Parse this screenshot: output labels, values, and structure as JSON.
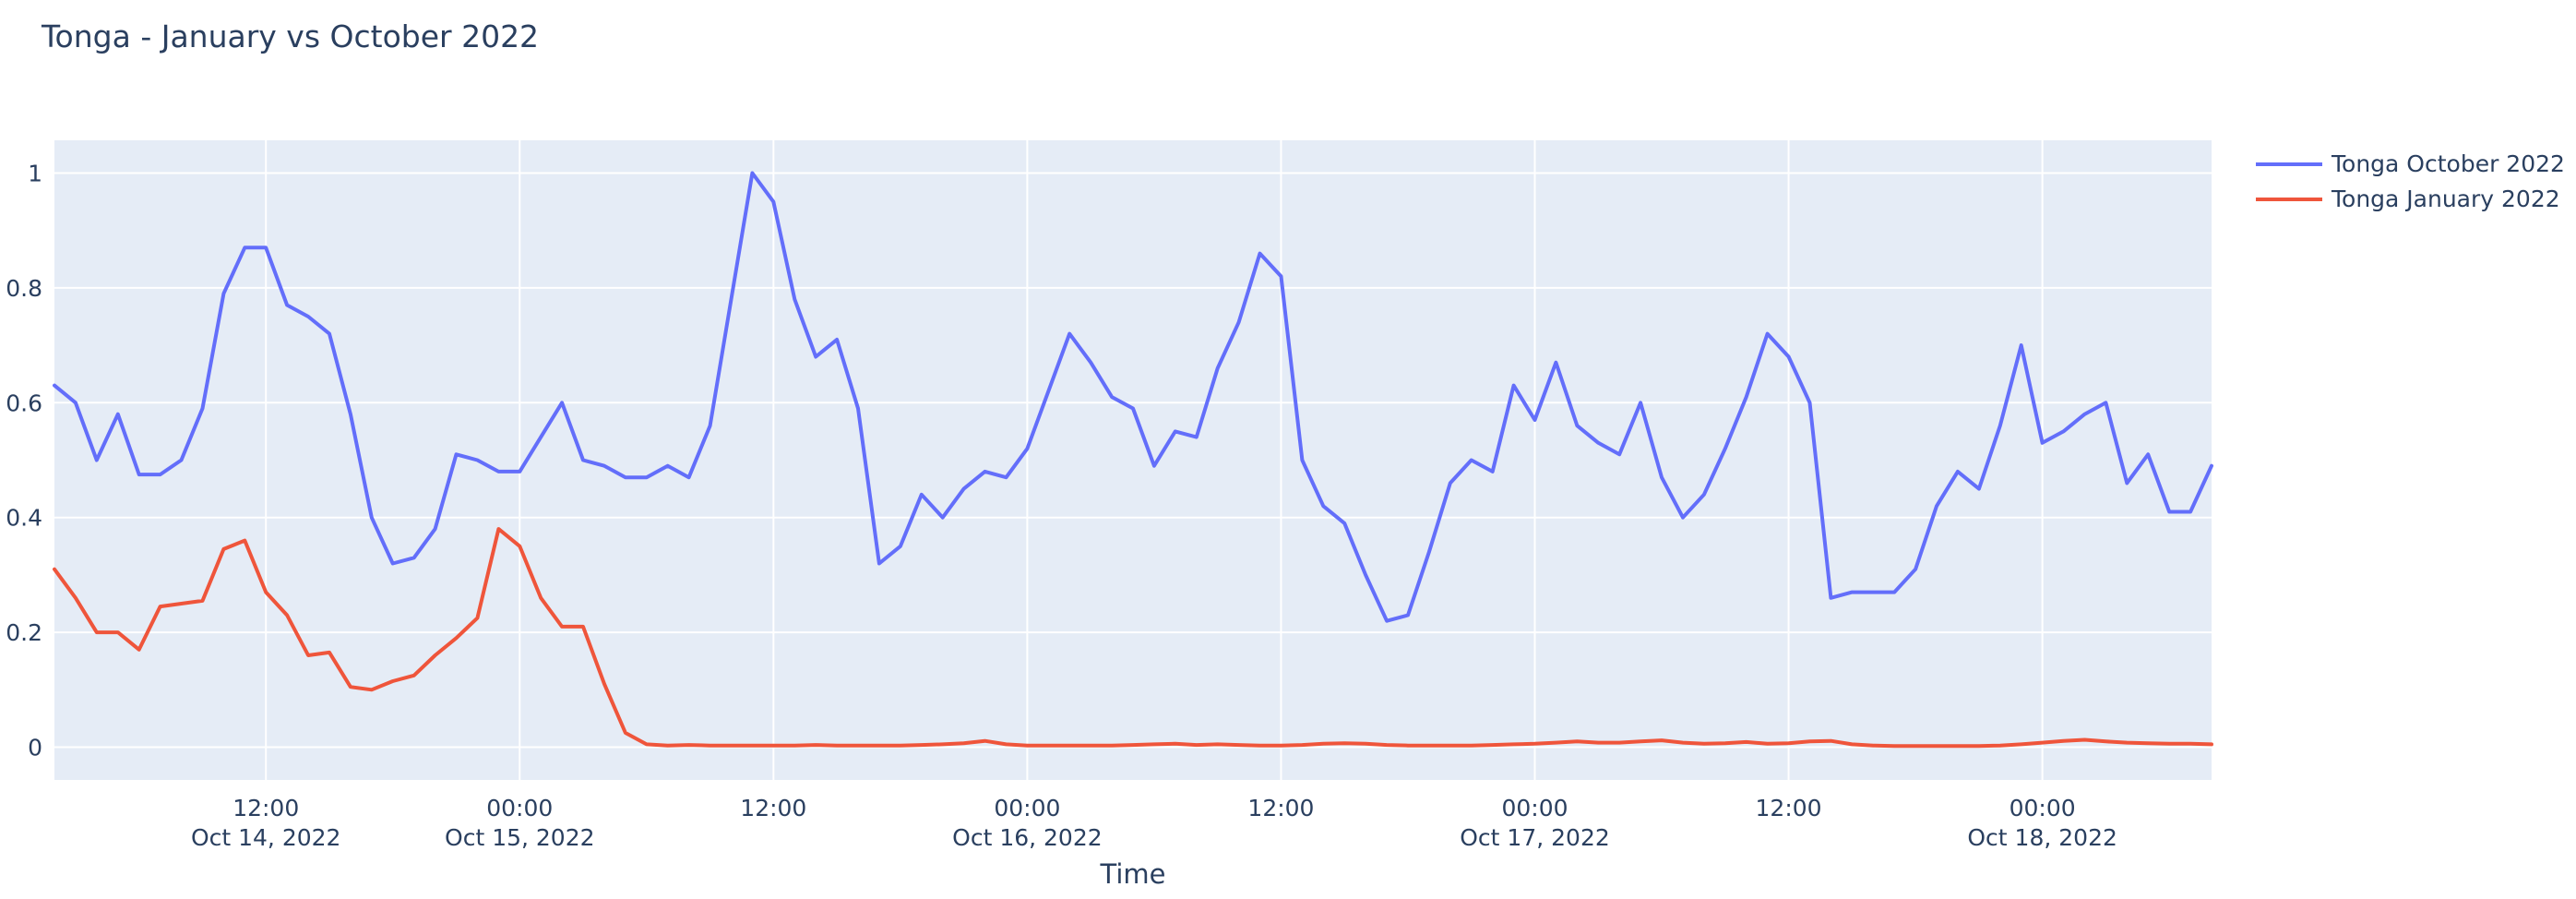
{
  "chart_data": {
    "type": "line",
    "title": "Tonga - January vs October 2022",
    "xlabel": "Time",
    "ylabel": "",
    "x_start": "Oct 14, 2022 02:00",
    "x_step_hours": 1,
    "xlim_hours": [
      0,
      102
    ],
    "ylim": [
      -0.057,
      1.057
    ],
    "grid": true,
    "legend_position": "top-right",
    "plot_bg": "#E5ECF6",
    "grid_color": "#FFFFFF",
    "text_color": "#2A3F5F",
    "line_width": 4,
    "y_ticks": [
      0,
      0.2,
      0.4,
      0.6,
      0.8,
      1
    ],
    "y_tick_labels": [
      "0",
      "0.2",
      "0.4",
      "0.6",
      "0.8",
      "1"
    ],
    "x_ticks": [
      {
        "offset_hours": 10,
        "time": "12:00",
        "date": "Oct 14, 2022"
      },
      {
        "offset_hours": 22,
        "time": "00:00",
        "date": "Oct 15, 2022"
      },
      {
        "offset_hours": 34,
        "time": "12:00",
        "date": ""
      },
      {
        "offset_hours": 46,
        "time": "00:00",
        "date": "Oct 16, 2022"
      },
      {
        "offset_hours": 58,
        "time": "12:00",
        "date": ""
      },
      {
        "offset_hours": 70,
        "time": "00:00",
        "date": "Oct 17, 2022"
      },
      {
        "offset_hours": 82,
        "time": "12:00",
        "date": ""
      },
      {
        "offset_hours": 94,
        "time": "00:00",
        "date": "Oct 18, 2022"
      }
    ],
    "series": [
      {
        "name": "Tonga October 2022",
        "color": "#636EFA",
        "values": [
          0.63,
          0.6,
          0.5,
          0.58,
          0.475,
          0.475,
          0.5,
          0.59,
          0.79,
          0.87,
          0.87,
          0.77,
          0.75,
          0.72,
          0.58,
          0.4,
          0.32,
          0.33,
          0.38,
          0.51,
          0.5,
          0.48,
          0.48,
          0.54,
          0.6,
          0.5,
          0.49,
          0.47,
          0.47,
          0.49,
          0.47,
          0.56,
          0.78,
          1.0,
          0.95,
          0.78,
          0.68,
          0.71,
          0.59,
          0.32,
          0.35,
          0.44,
          0.4,
          0.45,
          0.48,
          0.47,
          0.52,
          0.62,
          0.72,
          0.67,
          0.61,
          0.59,
          0.49,
          0.55,
          0.54,
          0.66,
          0.74,
          0.86,
          0.82,
          0.5,
          0.42,
          0.39,
          0.3,
          0.22,
          0.23,
          0.34,
          0.46,
          0.5,
          0.48,
          0.63,
          0.57,
          0.67,
          0.56,
          0.53,
          0.51,
          0.6,
          0.47,
          0.4,
          0.44,
          0.52,
          0.61,
          0.72,
          0.68,
          0.6,
          0.26,
          0.27,
          0.27,
          0.27,
          0.31,
          0.42,
          0.48,
          0.45,
          0.56,
          0.7,
          0.53,
          0.55,
          0.58,
          0.6,
          0.46,
          0.51,
          0.41,
          0.41,
          0.49
        ]
      },
      {
        "name": "Tonga January 2022",
        "color": "#EF553B",
        "values": [
          0.31,
          0.26,
          0.2,
          0.2,
          0.17,
          0.245,
          0.25,
          0.255,
          0.345,
          0.36,
          0.27,
          0.23,
          0.16,
          0.165,
          0.105,
          0.1,
          0.115,
          0.125,
          0.16,
          0.19,
          0.225,
          0.38,
          0.35,
          0.26,
          0.21,
          0.21,
          0.11,
          0.025,
          0.005,
          0.003,
          0.004,
          0.003,
          0.003,
          0.003,
          0.003,
          0.003,
          0.004,
          0.003,
          0.003,
          0.003,
          0.003,
          0.004,
          0.005,
          0.007,
          0.011,
          0.005,
          0.003,
          0.003,
          0.003,
          0.003,
          0.003,
          0.004,
          0.005,
          0.006,
          0.004,
          0.005,
          0.004,
          0.003,
          0.003,
          0.004,
          0.006,
          0.007,
          0.006,
          0.004,
          0.003,
          0.003,
          0.003,
          0.003,
          0.004,
          0.005,
          0.006,
          0.008,
          0.01,
          0.008,
          0.008,
          0.01,
          0.012,
          0.008,
          0.006,
          0.007,
          0.009,
          0.006,
          0.007,
          0.01,
          0.011,
          0.005,
          0.003,
          0.002,
          0.002,
          0.002,
          0.002,
          0.002,
          0.003,
          0.005,
          0.008,
          0.011,
          0.013,
          0.01,
          0.008,
          0.007,
          0.006,
          0.006,
          0.005
        ]
      }
    ]
  }
}
